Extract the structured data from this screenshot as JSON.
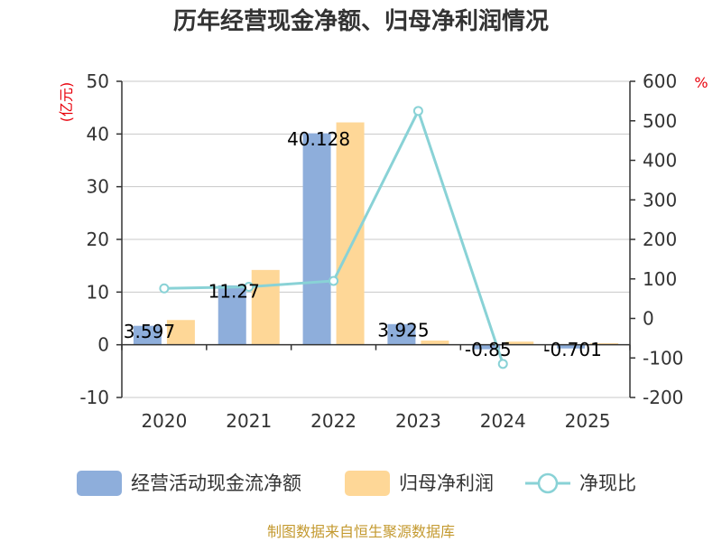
{
  "title": "历年经营现金净额、归母净利润情况",
  "source": "制图数据来自恒生聚源数据库",
  "colors": {
    "cash": "#8eaedb",
    "profit": "#fed797",
    "ratio": "#89d2d6",
    "unit_red": "#e8000b",
    "source": "#c49a30",
    "axis": "#333333",
    "grid": "#c8c8c8"
  },
  "chart_data": {
    "type": "bar+line",
    "categories": [
      "2020",
      "2021",
      "2022",
      "2023",
      "2024",
      "2025"
    ],
    "left_axis": {
      "unit": "(亿元)",
      "ylim": [
        -10,
        50
      ],
      "ticks": [
        "50",
        "40",
        "30",
        "20",
        "10",
        "0",
        "-10"
      ]
    },
    "right_axis": {
      "unit": "%",
      "ylim": [
        -200,
        600
      ],
      "ticks": [
        "600",
        "500",
        "400",
        "300",
        "200",
        "100",
        "0",
        "-100",
        "-200"
      ]
    },
    "series": [
      {
        "name": "经营活动现金流净额",
        "type": "bar",
        "axis": "left",
        "values": [
          3.597,
          11.27,
          40.128,
          3.925,
          -0.85,
          -0.701
        ],
        "labels": [
          "3.597",
          "11.27",
          "40.128",
          "3.925",
          "-0.85",
          "-0.701"
        ]
      },
      {
        "name": "归母净利润",
        "type": "bar",
        "axis": "left",
        "values": [
          4.7,
          14.2,
          42.2,
          0.8,
          0.6,
          0.3
        ]
      },
      {
        "name": "净现比",
        "type": "line",
        "axis": "right",
        "values": [
          76,
          80,
          95,
          525,
          -115,
          null
        ]
      }
    ],
    "legend": [
      "经营活动现金流净额",
      "归母净利润",
      "净现比"
    ],
    "legend_position": "bottom"
  }
}
